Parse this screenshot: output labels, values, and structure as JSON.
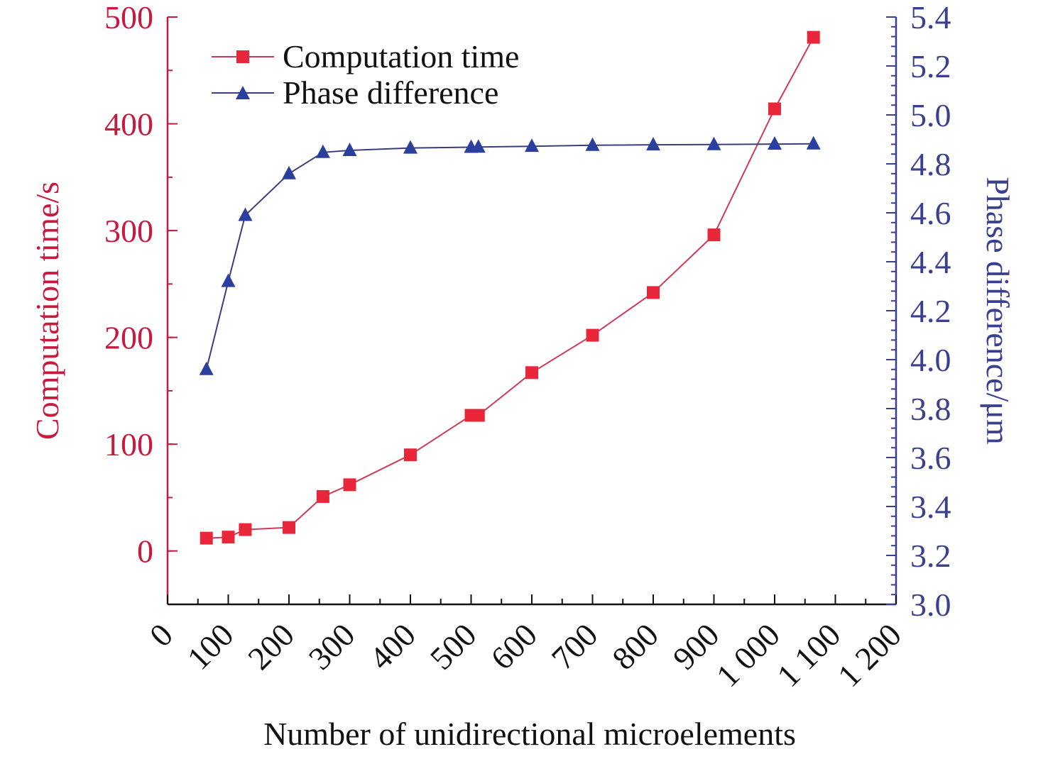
{
  "chart_data": {
    "type": "line",
    "title": "",
    "xlabel": "Number of unidirectional microelements",
    "ylabel_left": "Computation time/s",
    "ylabel_right": "Phase difference/μm",
    "xlim": [
      0,
      1200
    ],
    "ylim_left": [
      -50,
      500
    ],
    "ylim_right": [
      3.0,
      5.4
    ],
    "x_ticks": [
      {
        "value": 0,
        "label": "0"
      },
      {
        "value": 100,
        "label": "100"
      },
      {
        "value": 200,
        "label": "200"
      },
      {
        "value": 300,
        "label": "300"
      },
      {
        "value": 400,
        "label": "400"
      },
      {
        "value": 500,
        "label": "500"
      },
      {
        "value": 600,
        "label": "600"
      },
      {
        "value": 700,
        "label": "700"
      },
      {
        "value": 800,
        "label": "800"
      },
      {
        "value": 900,
        "label": "900"
      },
      {
        "value": 1000,
        "label": "1 000"
      },
      {
        "value": 1100,
        "label": "1 100"
      },
      {
        "value": 1200,
        "label": "1 200"
      }
    ],
    "y_left_ticks": [
      {
        "value": 0,
        "label": "0"
      },
      {
        "value": 100,
        "label": "100"
      },
      {
        "value": 200,
        "label": "200"
      },
      {
        "value": 300,
        "label": "300"
      },
      {
        "value": 400,
        "label": "400"
      },
      {
        "value": 500,
        "label": "500"
      }
    ],
    "y_right_ticks": [
      {
        "value": 3.0,
        "label": "3.0"
      },
      {
        "value": 3.2,
        "label": "3.2"
      },
      {
        "value": 3.4,
        "label": "3.4"
      },
      {
        "value": 3.6,
        "label": "3.6"
      },
      {
        "value": 3.8,
        "label": "3.8"
      },
      {
        "value": 4.0,
        "label": "4.0"
      },
      {
        "value": 4.2,
        "label": "4.2"
      },
      {
        "value": 4.4,
        "label": "4.4"
      },
      {
        "value": 4.6,
        "label": "4.6"
      },
      {
        "value": 4.8,
        "label": "4.8"
      },
      {
        "value": 5.0,
        "label": "5.0"
      },
      {
        "value": 5.2,
        "label": "5.2"
      },
      {
        "value": 5.4,
        "label": "5.4"
      }
    ],
    "grid": false,
    "legend_position": "top-left",
    "series": [
      {
        "name": "Computation time",
        "axis": "left",
        "marker": "square",
        "color": "#e8273a",
        "line_color": "#cf3a5a",
        "points": [
          {
            "x": 64,
            "y": 12
          },
          {
            "x": 100,
            "y": 13
          },
          {
            "x": 128,
            "y": 20
          },
          {
            "x": 200,
            "y": 22
          },
          {
            "x": 256,
            "y": 51
          },
          {
            "x": 300,
            "y": 62
          },
          {
            "x": 400,
            "y": 90
          },
          {
            "x": 500,
            "y": 127
          },
          {
            "x": 512,
            "y": 127
          },
          {
            "x": 600,
            "y": 167
          },
          {
            "x": 700,
            "y": 202
          },
          {
            "x": 800,
            "y": 242
          },
          {
            "x": 900,
            "y": 296
          },
          {
            "x": 1000,
            "y": 414
          },
          {
            "x": 1064,
            "y": 481
          }
        ]
      },
      {
        "name": "Phase difference",
        "axis": "right",
        "marker": "triangle",
        "color": "#2b3f9e",
        "line_color": "#3a3f7a",
        "points": [
          {
            "x": 64,
            "y": 3.96
          },
          {
            "x": 100,
            "y": 4.32
          },
          {
            "x": 128,
            "y": 4.59
          },
          {
            "x": 200,
            "y": 4.76
          },
          {
            "x": 256,
            "y": 4.847
          },
          {
            "x": 300,
            "y": 4.855
          },
          {
            "x": 400,
            "y": 4.865
          },
          {
            "x": 500,
            "y": 4.868
          },
          {
            "x": 512,
            "y": 4.869
          },
          {
            "x": 600,
            "y": 4.872
          },
          {
            "x": 700,
            "y": 4.876
          },
          {
            "x": 800,
            "y": 4.878
          },
          {
            "x": 900,
            "y": 4.879
          },
          {
            "x": 1000,
            "y": 4.881
          },
          {
            "x": 1064,
            "y": 4.882
          }
        ]
      }
    ],
    "colors": {
      "left_axis": "#c8193f",
      "right_axis": "#3b3f8f",
      "x_axis": "#111111"
    }
  }
}
